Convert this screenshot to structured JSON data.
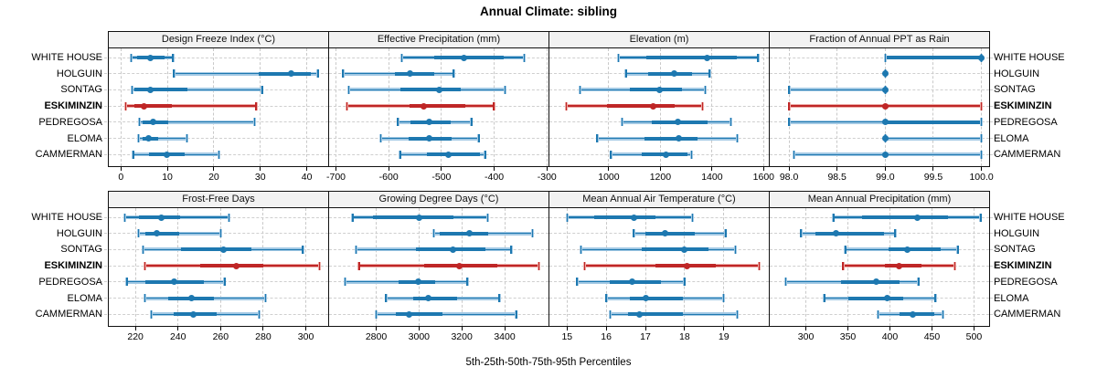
{
  "title": "Annual Climate: sibling",
  "caption": "5th-25th-50th-75th-95th Percentiles",
  "colors": {
    "series": "#1d78b0",
    "series_light": "#a3c9e4",
    "highlight": "#bf2626",
    "highlight_light": "#edaaa5",
    "grid": "#c9c9c9",
    "header_bg": "#f2f2f2",
    "border": "#111111"
  },
  "chart_data": {
    "type": "interval",
    "title": "Annual Climate: sibling",
    "caption": "5th-25th-50th-75th-95th Percentiles",
    "legend_position": "none",
    "grid": "dashed",
    "percentile_order": [
      "p5",
      "p25",
      "p50",
      "p75",
      "p95"
    ],
    "categories": [
      "WHITE HOUSE",
      "HOLGUIN",
      "SONTAG",
      "ESKIMINZIN",
      "PEDREGOSA",
      "ELOMA",
      "CAMMERMAN"
    ],
    "highlight": "ESKIMINZIN",
    "panels": [
      {
        "title": "Design Freeze Index (°C)",
        "xlim": [
          -2.6,
          44.6
        ],
        "ticks": [
          0,
          10,
          20,
          30,
          40
        ],
        "tick_labels": [
          "0",
          "10",
          "20",
          "30",
          "40"
        ],
        "values": [
          [
            2.2,
            3.4,
            6.3,
            9.4,
            11.2
          ],
          [
            11.4,
            29.6,
            36.7,
            40.8,
            42.4
          ],
          [
            2.4,
            3.0,
            6.3,
            14.3,
            30.4
          ],
          [
            1.0,
            3.0,
            5.0,
            10.9,
            29.1
          ],
          [
            4.0,
            4.7,
            6.9,
            10.1,
            28.8
          ],
          [
            3.8,
            4.7,
            6.0,
            8.0,
            14.2
          ],
          [
            2.7,
            6.1,
            9.9,
            13.7,
            21.1
          ]
        ]
      },
      {
        "title": "Effective Precipitation (mm)",
        "xlim": [
          -713,
          -297
        ],
        "ticks": [
          -700,
          -600,
          -500,
          -400,
          -300
        ],
        "tick_labels": [
          "-700",
          "-600",
          "-500",
          "-400",
          "-300"
        ],
        "values": [
          [
            -575,
            -513,
            -457,
            -382,
            -343
          ],
          [
            -687,
            -589,
            -559,
            -514,
            -477
          ],
          [
            -676,
            -578,
            -505,
            -464,
            -379
          ],
          [
            -679,
            -560,
            -534,
            -455,
            -401
          ],
          [
            -583,
            -559,
            -524,
            -483,
            -443
          ],
          [
            -615,
            -562,
            -524,
            -480,
            -429
          ],
          [
            -578,
            -527,
            -486,
            -427,
            -417
          ]
        ]
      },
      {
        "title": "Elevation (m)",
        "xlim": [
          770,
          1620
        ],
        "ticks": [
          1000,
          1200,
          1400,
          1600
        ],
        "tick_labels": [
          "1000",
          "1200",
          "1400",
          "1600"
        ],
        "values": [
          [
            1037,
            1147,
            1381,
            1496,
            1578
          ],
          [
            1067,
            1154,
            1253,
            1323,
            1390
          ],
          [
            888,
            1081,
            1198,
            1285,
            1373
          ],
          [
            835,
            993,
            1172,
            1256,
            1364
          ],
          [
            1052,
            1168,
            1268,
            1381,
            1473
          ],
          [
            955,
            1139,
            1271,
            1344,
            1498
          ],
          [
            1008,
            1126,
            1221,
            1305,
            1320
          ]
        ]
      },
      {
        "title": "Fraction of Annual PPT as Rain",
        "xlim": [
          97.8,
          100.08
        ],
        "ticks": [
          98.0,
          98.5,
          99.0,
          99.5,
          100.0
        ],
        "tick_labels": [
          "98.0",
          "98.5",
          "99.0",
          "99.5",
          "100.0"
        ],
        "values": [
          [
            99.0,
            99.0,
            100.0,
            100.0,
            100.0
          ],
          [
            99.0,
            99.0,
            99.0,
            99.0,
            99.0
          ],
          [
            98.0,
            99.0,
            99.0,
            99.0,
            99.0
          ],
          [
            98.0,
            99.0,
            99.0,
            99.0,
            100.0
          ],
          [
            98.0,
            99.0,
            99.0,
            100.0,
            100.0
          ],
          [
            99.0,
            99.0,
            99.0,
            99.0,
            100.0
          ],
          [
            98.05,
            99.0,
            99.0,
            99.0,
            100.0
          ]
        ]
      },
      {
        "title": "Frost-Free Days",
        "xlim": [
          207.5,
          310.5
        ],
        "ticks": [
          220,
          240,
          260,
          280,
          300
        ],
        "tick_labels": [
          "220",
          "240",
          "260",
          "280",
          "300"
        ],
        "values": [
          [
            215,
            221.5,
            232,
            241,
            264
          ],
          [
            221.5,
            224.5,
            230,
            240.5,
            260
          ],
          [
            223.5,
            241.5,
            261.5,
            274.5,
            298.5
          ],
          [
            224.5,
            250.5,
            267.5,
            280,
            306.5
          ],
          [
            216,
            224.5,
            238,
            252,
            262
          ],
          [
            224.5,
            235.5,
            246.5,
            257,
            281
          ],
          [
            227.5,
            238,
            247,
            258,
            278
          ]
        ]
      },
      {
        "title": "Growing Degree Days (°C)",
        "xlim": [
          2580,
          3605
        ],
        "ticks": [
          2800,
          3000,
          3200,
          3400
        ],
        "tick_labels": [
          "2800",
          "3000",
          "3200",
          "3400"
        ],
        "values": [
          [
            2690,
            2785,
            3000,
            3160,
            3320
          ],
          [
            3070,
            3095,
            3235,
            3325,
            3530
          ],
          [
            2705,
            2985,
            3160,
            3310,
            3430
          ],
          [
            2720,
            3025,
            3190,
            3365,
            3560
          ],
          [
            2655,
            2905,
            2995,
            3075,
            3225
          ],
          [
            2845,
            2975,
            3045,
            3180,
            3375
          ],
          [
            2800,
            2890,
            2955,
            3110,
            3455
          ]
        ]
      },
      {
        "title": "Mean Annual Air Temperature (°C)",
        "xlim": [
          14.55,
          20.15
        ],
        "ticks": [
          15,
          16,
          17,
          18,
          19
        ],
        "tick_labels": [
          "15",
          "16",
          "17",
          "18",
          "19"
        ],
        "values": [
          [
            15.0,
            15.7,
            16.7,
            17.25,
            18.2
          ],
          [
            16.7,
            17.0,
            17.5,
            18.25,
            19.05
          ],
          [
            15.35,
            16.9,
            18.0,
            18.6,
            19.3
          ],
          [
            15.45,
            17.25,
            18.05,
            18.8,
            19.9
          ],
          [
            15.25,
            16.1,
            16.65,
            17.4,
            18.0
          ],
          [
            16.0,
            16.6,
            17.0,
            17.95,
            19.0
          ],
          [
            16.1,
            16.55,
            16.85,
            17.95,
            19.35
          ]
        ]
      },
      {
        "title": "Mean Annual Precipitation (mm)",
        "xlim": [
          257,
          518
        ],
        "ticks": [
          300,
          350,
          400,
          450,
          500
        ],
        "tick_labels": [
          "300",
          "350",
          "400",
          "450",
          "500"
        ],
        "values": [
          [
            333,
            367,
            433,
            469,
            508
          ],
          [
            294,
            311,
            336,
            393,
            406
          ],
          [
            347,
            398,
            421,
            460,
            481
          ],
          [
            344,
            394,
            411,
            438,
            477
          ],
          [
            276,
            342,
            384,
            411,
            434
          ],
          [
            322,
            351,
            397,
            416,
            454
          ],
          [
            386,
            411,
            427,
            453,
            463
          ]
        ]
      }
    ]
  }
}
